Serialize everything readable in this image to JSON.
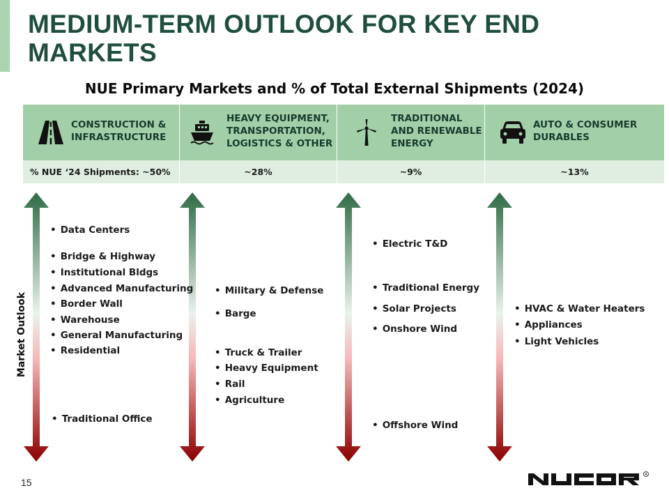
{
  "slide": {
    "title": "MEDIUM-TERM OUTLOOK FOR KEY END MARKETS",
    "subtitle": "NUE Primary Markets and % of Total External Shipments (2024)",
    "page_number": "15",
    "vertical_label": "Market Outlook",
    "logo_text": "NUCOR",
    "accent_color": "#1f4e3d",
    "header_color": "#a3cfa8",
    "pct_row_color": "#dfeee0",
    "arrow_top_color": "#2f6b45",
    "arrow_bottom_color": "#8b0000"
  },
  "markets": [
    {
      "label": "CONSTRUCTION &\nINFRASTRUCTURE",
      "icon": "road-icon",
      "share": "% NUE ‘24 Shipments:  ~50%"
    },
    {
      "label": "HEAVY EQUIPMENT,\nTRANSPORTATION,\nLOGISTICS & OTHER",
      "icon": "ship-icon",
      "share": "~28%"
    },
    {
      "label": "TRADITIONAL\nAND RENEWABLE\nENERGY",
      "icon": "wind-turbine-icon",
      "share": "~9%"
    },
    {
      "label": "AUTO & CONSUMER\nDURABLES",
      "icon": "car-icon",
      "share": "~13%"
    }
  ],
  "outlook": {
    "construction": [
      "Data Centers",
      "Bridge & Highway",
      "Institutional Bldgs",
      "Advanced Manufacturing",
      "Border Wall",
      "Warehouse",
      "General Manufacturing",
      "Residential",
      "Traditional Office"
    ],
    "heavy_equipment": [
      "Military & Defense",
      "Barge",
      "Truck & Trailer",
      "Heavy Equipment",
      "Rail",
      "Agriculture"
    ],
    "energy": [
      "Electric T&D",
      "Traditional Energy",
      "Solar Projects",
      "Onshore Wind",
      "Offshore Wind"
    ],
    "auto": [
      "HVAC & Water Heaters",
      "Appliances",
      "Light Vehicles"
    ]
  }
}
